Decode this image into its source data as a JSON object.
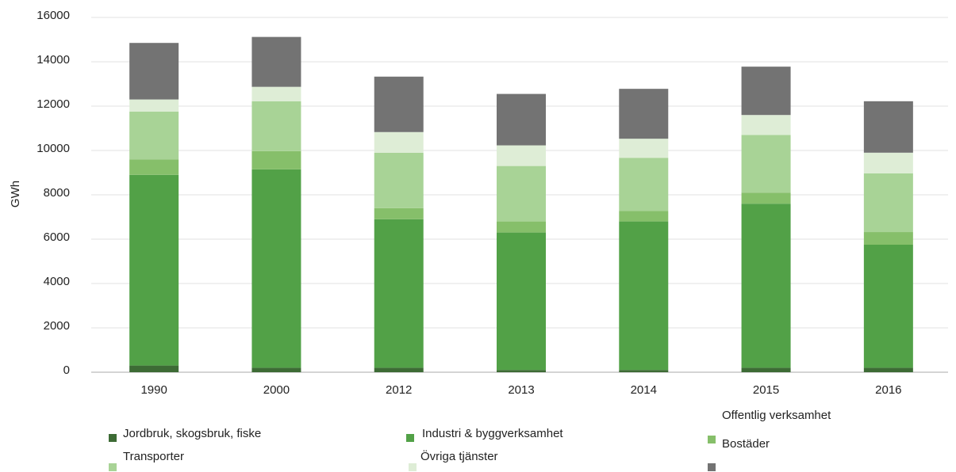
{
  "chart_data": {
    "type": "bar",
    "stacked": true,
    "y_label": "GWh",
    "categories": [
      "1990",
      "2000",
      "2012",
      "2013",
      "2014",
      "2015",
      "2016"
    ],
    "series": [
      {
        "name": "Jordbruk, skogsbruk, fiske",
        "color": "#3d6b35",
        "values": [
          300,
          200,
          200,
          100,
          100,
          200,
          200
        ]
      },
      {
        "name": "Industri & byggverksamhet",
        "color": "#52a147",
        "values": [
          8600,
          8950,
          6700,
          6200,
          6700,
          7400,
          5550
        ]
      },
      {
        "name": "Bostäder",
        "color": "#86bf6a",
        "values": [
          700,
          820,
          500,
          500,
          470,
          500,
          570
        ]
      },
      {
        "name": "Transporter",
        "color": "#a8d396",
        "values": [
          2150,
          2250,
          2500,
          2500,
          2400,
          2600,
          2650
        ]
      },
      {
        "name": "Övriga tjänster",
        "color": "#deedd6",
        "values": [
          550,
          650,
          930,
          930,
          860,
          900,
          930
        ]
      },
      {
        "name": "Offentlig verksamhet",
        "color": "#737373",
        "values": [
          2550,
          2250,
          2500,
          2320,
          2250,
          2180,
          2320
        ]
      }
    ],
    "ylim": [
      0,
      16000
    ],
    "yticks": [
      0,
      2000,
      4000,
      6000,
      8000,
      10000,
      12000,
      14000,
      16000
    ],
    "grid": true
  }
}
